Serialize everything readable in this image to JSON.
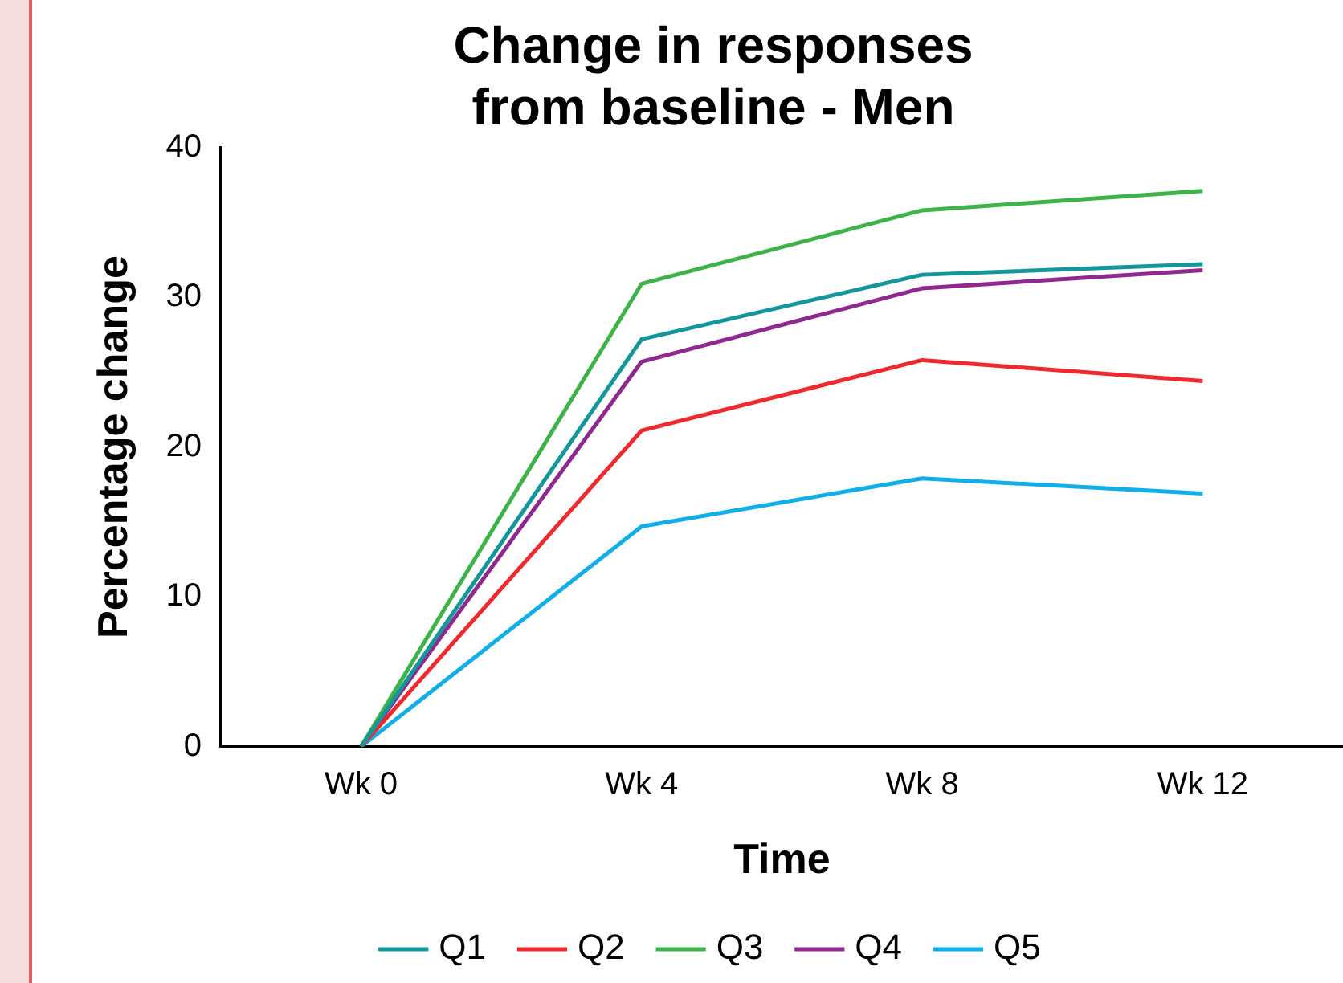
{
  "chart_data": {
    "type": "line",
    "title": "Change in responses from baseline - Men",
    "xlabel": "Time",
    "ylabel": "Percentage change",
    "categories": [
      "Wk 0",
      "Wk 4",
      "Wk 8",
      "Wk 12"
    ],
    "ylim": [
      0,
      40
    ],
    "yticks": [
      0,
      10,
      20,
      30,
      40
    ],
    "grid": false,
    "legend": "bottom",
    "marker": "none",
    "line_style": "solid",
    "series": [
      {
        "name": "Q1",
        "color": "#14969a",
        "values": [
          0,
          27.2,
          31.5,
          32.2
        ]
      },
      {
        "name": "Q2",
        "color": "#ee2a2e",
        "values": [
          0,
          21.1,
          25.8,
          24.4
        ]
      },
      {
        "name": "Q3",
        "color": "#3fb24a",
        "values": [
          0,
          30.9,
          35.8,
          37.1
        ]
      },
      {
        "name": "Q4",
        "color": "#8e2a8f",
        "values": [
          0,
          25.7,
          30.6,
          31.8
        ]
      },
      {
        "name": "Q5",
        "color": "#12aee8",
        "values": [
          0,
          14.7,
          17.9,
          16.9
        ]
      }
    ]
  }
}
